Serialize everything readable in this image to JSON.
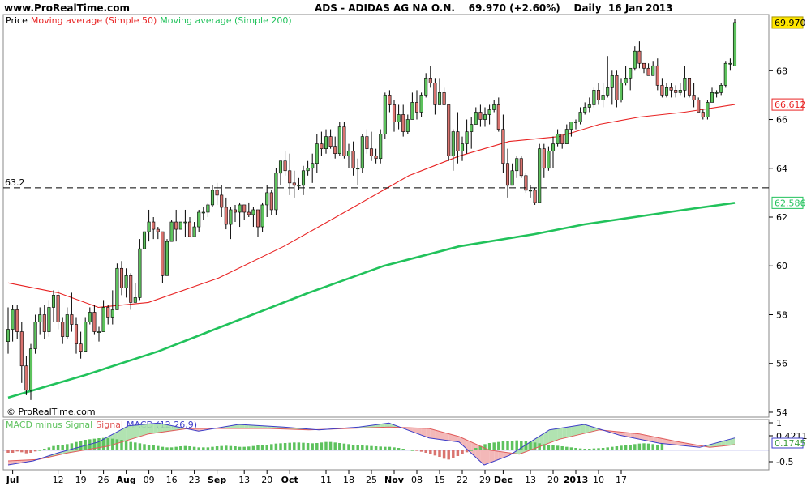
{
  "header": {
    "site": "www.ProRealTime.com",
    "title": "ADS - ADIDAS AG NA O.N.    69.970 (+2.60%)    Daily  16 Jan 2013"
  },
  "legend": {
    "price": "Price",
    "ma50": "Moving average (Simple 50)",
    "ma200": "Moving average (Simple 200)",
    "macd_hist": "MACD minus Signal",
    "macd_signal": "Signal",
    "macd_line": "MACD (12,26,9)"
  },
  "watermark": "© ProRealTime.com",
  "colors": {
    "up": "#5dc25d",
    "down": "#d9736f",
    "ma50": "#e82323",
    "ma200": "#21c25b",
    "last": "#ffe600",
    "macd": "#3c3cc8",
    "signal": "#e05a5a"
  },
  "chart_data": {
    "type": "candlestick",
    "price_axis": {
      "ticks": [
        54,
        56,
        58,
        60,
        62,
        64,
        66,
        68
      ],
      "ylim": [
        53.8,
        70.3
      ]
    },
    "hline": {
      "value": 63.2,
      "label": "63.2"
    },
    "last_price": "69.970",
    "ma50_last": "66.612",
    "ma200_last": "62.586",
    "x_ticks": [
      {
        "i": 1,
        "l": "Jul",
        "b": true
      },
      {
        "i": 11,
        "l": "12"
      },
      {
        "i": 16,
        "l": "19"
      },
      {
        "i": 21,
        "l": "26"
      },
      {
        "i": 26,
        "l": "Aug",
        "b": true
      },
      {
        "i": 31,
        "l": "09"
      },
      {
        "i": 36,
        "l": "16"
      },
      {
        "i": 41,
        "l": "23"
      },
      {
        "i": 46,
        "l": "Sep",
        "b": true
      },
      {
        "i": 52,
        "l": "13"
      },
      {
        "i": 57,
        "l": "20"
      },
      {
        "i": 62,
        "l": "Oct",
        "b": true
      },
      {
        "i": 70,
        "l": "11"
      },
      {
        "i": 75,
        "l": "18"
      },
      {
        "i": 80,
        "l": "25"
      },
      {
        "i": 85,
        "l": "Nov",
        "b": true
      },
      {
        "i": 90,
        "l": "08"
      },
      {
        "i": 95,
        "l": "15"
      },
      {
        "i": 100,
        "l": "22"
      },
      {
        "i": 105,
        "l": "29"
      },
      {
        "i": 109,
        "l": "Dec",
        "b": true
      },
      {
        "i": 115,
        "l": "13"
      },
      {
        "i": 120,
        "l": "20"
      },
      {
        "i": 125,
        "l": "2013",
        "b": true
      },
      {
        "i": 130,
        "l": "10"
      },
      {
        "i": 135,
        "l": "17"
      }
    ],
    "candles": [
      [
        56.9,
        58.3,
        56.4,
        57.4
      ],
      [
        57.4,
        58.4,
        56.9,
        58.2
      ],
      [
        58.2,
        58.4,
        57.0,
        57.3
      ],
      [
        57.3,
        57.7,
        55.2,
        55.9
      ],
      [
        55.9,
        56.3,
        54.7,
        54.9
      ],
      [
        54.9,
        56.8,
        54.5,
        56.6
      ],
      [
        56.6,
        58.0,
        56.4,
        57.7
      ],
      [
        57.7,
        58.3,
        57.2,
        58.0
      ],
      [
        58.0,
        58.4,
        57.0,
        57.3
      ],
      [
        57.3,
        58.6,
        57.1,
        58.3
      ],
      [
        58.3,
        59.0,
        57.7,
        58.8
      ],
      [
        58.8,
        59.0,
        57.4,
        57.7
      ],
      [
        57.7,
        57.9,
        56.8,
        57.1
      ],
      [
        57.1,
        58.3,
        57.0,
        58.0
      ],
      [
        58.0,
        58.9,
        57.3,
        57.6
      ],
      [
        57.6,
        57.9,
        56.4,
        56.8
      ],
      [
        56.8,
        57.3,
        56.2,
        56.5
      ],
      [
        56.5,
        57.9,
        56.5,
        57.7
      ],
      [
        57.7,
        58.3,
        57.6,
        58.1
      ],
      [
        58.1,
        58.4,
        57.2,
        57.3
      ],
      [
        57.3,
        57.5,
        56.9,
        57.3
      ],
      [
        57.3,
        58.6,
        57.3,
        58.3
      ],
      [
        58.3,
        58.4,
        57.6,
        57.9
      ],
      [
        57.9,
        59.0,
        57.6,
        58.2
      ],
      [
        58.2,
        60.1,
        58.2,
        59.9
      ],
      [
        59.9,
        60.2,
        58.8,
        59.1
      ],
      [
        59.1,
        59.9,
        58.7,
        59.6
      ],
      [
        59.6,
        59.7,
        58.2,
        58.5
      ],
      [
        58.5,
        59.3,
        58.5,
        58.7
      ],
      [
        58.7,
        61.1,
        58.6,
        60.7
      ],
      [
        60.7,
        61.4,
        60.7,
        61.4
      ],
      [
        61.4,
        62.3,
        61.0,
        61.8
      ],
      [
        61.8,
        62.0,
        61.1,
        61.5
      ],
      [
        61.5,
        61.6,
        61.1,
        61.4
      ],
      [
        61.4,
        61.4,
        59.3,
        59.6
      ],
      [
        59.6,
        61.1,
        59.6,
        61.0
      ],
      [
        61.0,
        61.9,
        61.0,
        61.8
      ],
      [
        61.8,
        62.3,
        61.0,
        61.5
      ],
      [
        61.5,
        61.8,
        61.5,
        61.8
      ],
      [
        61.8,
        62.3,
        61.2,
        61.8
      ],
      [
        61.8,
        62.0,
        61.2,
        61.2
      ],
      [
        61.2,
        61.8,
        61.2,
        61.6
      ],
      [
        61.6,
        62.3,
        61.4,
        62.2
      ],
      [
        62.2,
        62.4,
        61.9,
        62.2
      ],
      [
        62.2,
        62.6,
        62.0,
        62.5
      ],
      [
        62.5,
        63.3,
        62.4,
        63.1
      ],
      [
        63.1,
        63.4,
        62.5,
        62.9
      ],
      [
        62.9,
        63.3,
        62.0,
        62.4
      ],
      [
        62.4,
        62.8,
        61.5,
        61.7
      ],
      [
        61.7,
        62.4,
        61.1,
        62.3
      ],
      [
        62.3,
        62.5,
        61.8,
        62.2
      ],
      [
        62.2,
        62.6,
        61.6,
        62.5
      ],
      [
        62.5,
        62.5,
        61.9,
        62.2
      ],
      [
        62.2,
        62.6,
        62.0,
        62.1
      ],
      [
        62.1,
        62.4,
        61.6,
        62.3
      ],
      [
        62.3,
        62.3,
        61.2,
        61.6
      ],
      [
        61.6,
        62.6,
        61.4,
        62.5
      ],
      [
        62.5,
        63.3,
        62.0,
        63.0
      ],
      [
        63.0,
        63.1,
        62.1,
        62.3
      ],
      [
        62.3,
        64.0,
        62.1,
        63.8
      ],
      [
        63.8,
        64.3,
        63.3,
        64.3
      ],
      [
        64.3,
        64.7,
        63.7,
        63.9
      ],
      [
        63.9,
        64.6,
        62.9,
        63.4
      ],
      [
        63.4,
        63.9,
        62.8,
        63.3
      ],
      [
        63.3,
        63.6,
        63.1,
        63.3
      ],
      [
        63.3,
        64.1,
        62.9,
        63.9
      ],
      [
        63.9,
        64.3,
        63.7,
        64.0
      ],
      [
        64.0,
        64.6,
        63.4,
        64.2
      ],
      [
        64.2,
        65.4,
        63.8,
        65.0
      ],
      [
        65.0,
        65.5,
        64.5,
        64.8
      ],
      [
        64.8,
        65.6,
        64.6,
        65.3
      ],
      [
        65.3,
        65.6,
        64.8,
        64.9
      ],
      [
        64.9,
        65.3,
        64.4,
        64.6
      ],
      [
        64.6,
        65.9,
        64.5,
        65.7
      ],
      [
        65.7,
        65.9,
        64.4,
        64.5
      ],
      [
        64.5,
        65.0,
        64.0,
        64.7
      ],
      [
        64.7,
        65.1,
        63.7,
        64.0
      ],
      [
        64.0,
        64.4,
        63.3,
        64.0
      ],
      [
        64.0,
        65.4,
        63.8,
        65.3
      ],
      [
        65.3,
        65.6,
        64.6,
        64.8
      ],
      [
        64.8,
        65.5,
        64.3,
        64.5
      ],
      [
        64.5,
        64.8,
        64.2,
        64.4
      ],
      [
        64.4,
        65.6,
        64.2,
        65.4
      ],
      [
        65.4,
        67.1,
        65.2,
        67.0
      ],
      [
        67.0,
        67.2,
        66.3,
        66.6
      ],
      [
        66.6,
        66.8,
        65.5,
        65.9
      ],
      [
        65.9,
        66.6,
        65.6,
        66.2
      ],
      [
        66.2,
        66.6,
        65.3,
        65.5
      ],
      [
        65.5,
        66.2,
        65.4,
        66.0
      ],
      [
        66.0,
        67.1,
        66.0,
        66.7
      ],
      [
        66.7,
        67.2,
        66.0,
        66.3
      ],
      [
        66.3,
        67.1,
        66.1,
        67.0
      ],
      [
        67.0,
        67.9,
        66.9,
        67.7
      ],
      [
        67.7,
        68.2,
        67.3,
        67.5
      ],
      [
        67.5,
        67.7,
        66.2,
        66.6
      ],
      [
        66.6,
        67.7,
        66.6,
        67.1
      ],
      [
        67.1,
        67.3,
        66.6,
        66.6
      ],
      [
        66.6,
        66.6,
        64.3,
        64.5
      ],
      [
        64.5,
        65.6,
        63.9,
        65.5
      ],
      [
        65.5,
        66.3,
        64.2,
        64.7
      ],
      [
        64.7,
        65.3,
        64.3,
        65.0
      ],
      [
        65.0,
        66.0,
        64.6,
        65.5
      ],
      [
        65.5,
        66.1,
        64.8,
        65.8
      ],
      [
        65.8,
        66.5,
        65.8,
        66.3
      ],
      [
        66.3,
        66.6,
        65.7,
        66.0
      ],
      [
        66.0,
        66.5,
        65.7,
        66.2
      ],
      [
        66.2,
        66.6,
        65.8,
        66.4
      ],
      [
        66.4,
        66.8,
        66.3,
        66.6
      ],
      [
        66.6,
        66.9,
        65.5,
        65.6
      ],
      [
        65.6,
        66.2,
        63.8,
        64.2
      ],
      [
        64.2,
        64.8,
        62.8,
        63.3
      ],
      [
        63.3,
        64.2,
        63.3,
        63.9
      ],
      [
        63.9,
        64.5,
        63.6,
        64.4
      ],
      [
        64.4,
        64.5,
        63.6,
        63.7
      ],
      [
        63.7,
        63.8,
        63.0,
        63.1
      ],
      [
        63.1,
        63.3,
        62.8,
        63.1
      ],
      [
        63.1,
        63.2,
        62.5,
        62.6
      ],
      [
        62.6,
        65.0,
        62.6,
        64.8
      ],
      [
        64.8,
        65.0,
        63.6,
        64.0
      ],
      [
        64.0,
        64.9,
        63.9,
        64.7
      ],
      [
        64.7,
        65.3,
        64.0,
        65.0
      ],
      [
        65.0,
        65.6,
        64.9,
        65.4
      ],
      [
        65.4,
        65.4,
        64.8,
        65.0
      ],
      [
        65.0,
        65.8,
        65.0,
        65.6
      ],
      [
        65.6,
        65.9,
        65.3,
        65.9
      ],
      [
        65.9,
        66.0,
        65.6,
        65.9
      ],
      [
        65.9,
        66.5,
        65.8,
        66.3
      ],
      [
        66.3,
        66.7,
        66.2,
        66.5
      ],
      [
        66.5,
        66.9,
        66.3,
        66.6
      ],
      [
        66.6,
        67.3,
        66.5,
        67.2
      ],
      [
        67.2,
        67.5,
        66.6,
        66.8
      ],
      [
        66.8,
        67.5,
        66.5,
        67.0
      ],
      [
        67.0,
        68.6,
        66.9,
        67.3
      ],
      [
        67.3,
        68.0,
        66.6,
        67.8
      ],
      [
        67.8,
        68.0,
        66.5,
        66.8
      ],
      [
        66.8,
        67.7,
        66.7,
        67.5
      ],
      [
        67.5,
        68.2,
        67.4,
        67.7
      ],
      [
        67.7,
        68.1,
        67.2,
        68.1
      ],
      [
        68.1,
        69.0,
        68.0,
        68.8
      ],
      [
        68.8,
        69.2,
        68.1,
        68.3
      ],
      [
        68.3,
        68.3,
        67.9,
        68.1
      ],
      [
        68.1,
        68.3,
        67.8,
        67.8
      ],
      [
        67.8,
        68.4,
        67.8,
        68.2
      ],
      [
        68.2,
        68.5,
        67.2,
        67.4
      ],
      [
        67.4,
        67.7,
        66.9,
        67.0
      ],
      [
        67.0,
        67.5,
        66.9,
        67.3
      ],
      [
        67.3,
        67.5,
        66.9,
        67.2
      ],
      [
        67.2,
        67.4,
        66.9,
        67.1
      ],
      [
        67.1,
        67.5,
        67.0,
        67.2
      ],
      [
        67.2,
        68.2,
        66.9,
        67.7
      ],
      [
        67.7,
        67.7,
        66.9,
        67.0
      ],
      [
        67.0,
        67.5,
        66.5,
        66.8
      ],
      [
        66.8,
        66.9,
        66.3,
        66.3
      ],
      [
        66.3,
        66.4,
        66.0,
        66.1
      ],
      [
        66.1,
        66.8,
        66.0,
        66.7
      ],
      [
        66.7,
        67.3,
        66.7,
        67.1
      ],
      [
        67.1,
        67.2,
        66.9,
        67.1
      ],
      [
        67.1,
        67.5,
        67.0,
        67.4
      ],
      [
        67.4,
        68.4,
        67.3,
        68.3
      ],
      [
        68.3,
        68.5,
        68.0,
        68.3
      ],
      [
        68.2,
        70.1,
        68.2,
        69.97
      ]
    ],
    "ma50": [
      [
        0,
        59.3
      ],
      [
        10,
        58.9
      ],
      [
        18,
        58.3
      ],
      [
        28,
        58.5
      ],
      [
        42,
        59.5
      ],
      [
        55,
        60.8
      ],
      [
        68,
        62.3
      ],
      [
        80,
        63.7
      ],
      [
        90,
        64.5
      ],
      [
        100,
        65.1
      ],
      [
        110,
        65.3
      ],
      [
        118,
        65.8
      ],
      [
        126,
        66.1
      ],
      [
        135,
        66.3
      ],
      [
        145,
        66.612
      ]
    ],
    "ma200": [
      [
        0,
        54.6
      ],
      [
        15,
        55.5
      ],
      [
        30,
        56.5
      ],
      [
        45,
        57.7
      ],
      [
        60,
        58.9
      ],
      [
        75,
        60.0
      ],
      [
        90,
        60.8
      ],
      [
        105,
        61.3
      ],
      [
        115,
        61.7
      ],
      [
        125,
        62.0
      ],
      [
        135,
        62.3
      ],
      [
        145,
        62.586
      ]
    ],
    "macd": {
      "right_labels": [
        "1",
        "0.4211",
        "0.1745",
        "-0.5"
      ],
      "hline_value": "0.1745",
      "hist": [
        -0.1,
        -0.1,
        -0.05,
        -0.08,
        -0.12,
        -0.1,
        -0.05,
        0.0,
        0.05,
        0.1,
        0.15,
        0.18,
        0.2,
        0.22,
        0.25,
        0.3,
        0.35,
        0.38,
        0.4,
        0.42,
        0.44,
        0.45,
        0.44,
        0.42,
        0.4,
        0.38,
        0.35,
        0.3,
        0.28,
        0.25,
        0.22,
        0.2,
        0.18,
        0.15,
        0.12,
        0.1,
        0.1,
        0.12,
        0.14,
        0.15,
        0.14,
        0.12,
        0.1,
        0.1,
        0.1,
        0.12,
        0.14,
        0.15,
        0.16,
        0.15,
        0.14,
        0.12,
        0.12,
        0.13,
        0.15,
        0.17,
        0.18,
        0.2,
        0.22,
        0.24,
        0.25,
        0.26,
        0.27,
        0.28,
        0.28,
        0.27,
        0.26,
        0.25,
        0.26,
        0.28,
        0.3,
        0.3,
        0.28,
        0.26,
        0.24,
        0.22,
        0.2,
        0.18,
        0.17,
        0.16,
        0.15,
        0.14,
        0.13,
        0.12,
        0.12,
        0.1,
        0.08,
        0.05,
        0.02,
        0.0,
        -0.03,
        -0.06,
        -0.1,
        -0.15,
        -0.2,
        -0.25,
        -0.32,
        -0.35,
        -0.3,
        -0.22,
        -0.15,
        -0.08,
        0.0,
        0.08,
        0.15,
        0.22,
        0.26,
        0.28,
        0.3,
        0.32,
        0.34,
        0.35,
        0.36,
        0.34,
        0.32,
        0.3,
        0.28,
        0.25,
        0.22,
        0.2,
        0.18,
        0.16,
        0.14,
        0.12,
        0.1,
        0.08,
        0.06,
        0.05,
        0.05,
        0.06,
        0.07,
        0.08,
        0.1,
        0.12,
        0.14,
        0.16,
        0.18,
        0.2,
        0.22,
        0.24,
        0.25,
        0.24,
        0.22,
        0.2,
        0.25
      ],
      "line": [
        [
          0,
          -0.55
        ],
        [
          5,
          -0.4
        ],
        [
          10,
          -0.1
        ],
        [
          18,
          0.3
        ],
        [
          24,
          0.9
        ],
        [
          30,
          1.0
        ],
        [
          38,
          0.7
        ],
        [
          46,
          0.95
        ],
        [
          55,
          0.85
        ],
        [
          62,
          0.75
        ],
        [
          70,
          0.85
        ],
        [
          76,
          1.0
        ],
        [
          84,
          0.45
        ],
        [
          90,
          0.3
        ],
        [
          95,
          -0.55
        ],
        [
          100,
          -0.2
        ],
        [
          108,
          0.75
        ],
        [
          115,
          0.95
        ],
        [
          122,
          0.55
        ],
        [
          130,
          0.25
        ],
        [
          138,
          0.1
        ],
        [
          145,
          0.45
        ]
      ],
      "signal": [
        [
          0,
          -0.4
        ],
        [
          6,
          -0.35
        ],
        [
          12,
          -0.1
        ],
        [
          20,
          0.15
        ],
        [
          28,
          0.6
        ],
        [
          36,
          0.8
        ],
        [
          44,
          0.8
        ],
        [
          52,
          0.8
        ],
        [
          60,
          0.75
        ],
        [
          68,
          0.8
        ],
        [
          76,
          0.85
        ],
        [
          84,
          0.8
        ],
        [
          90,
          0.5
        ],
        [
          96,
          0.0
        ],
        [
          102,
          -0.15
        ],
        [
          110,
          0.4
        ],
        [
          118,
          0.75
        ],
        [
          126,
          0.6
        ],
        [
          134,
          0.3
        ],
        [
          140,
          0.1
        ],
        [
          145,
          0.2
        ]
      ],
      "ylim": [
        -0.7,
        1.1
      ]
    }
  }
}
